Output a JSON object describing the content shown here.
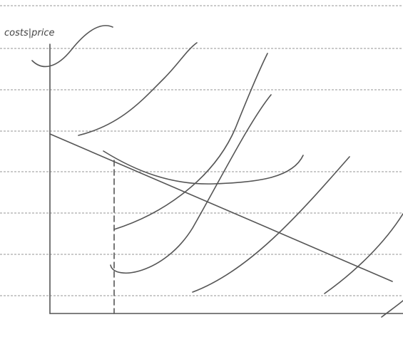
{
  "axis_label": "costs|price"
}
